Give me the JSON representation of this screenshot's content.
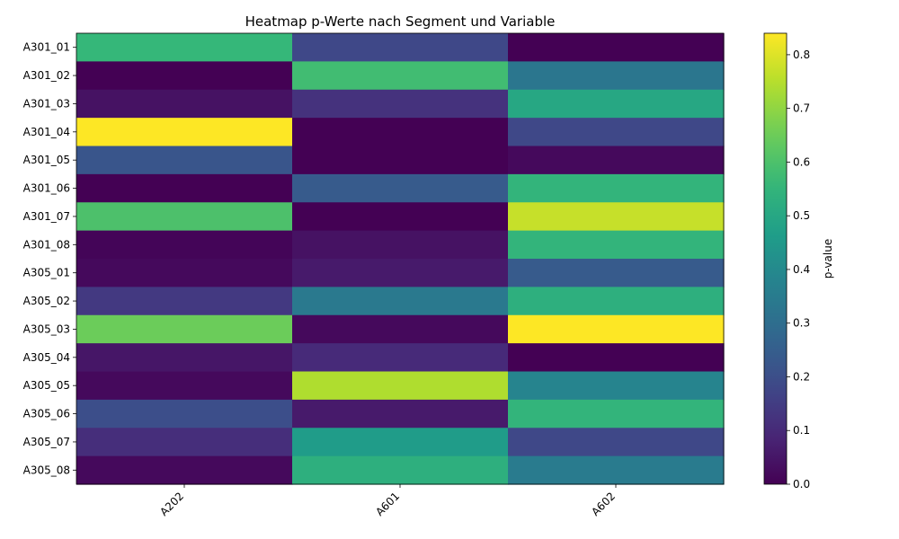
{
  "chart_data": {
    "type": "heatmap",
    "title": "Heatmap p-Werte nach Segment und Variable",
    "columns": [
      "A202",
      "A601",
      "A602"
    ],
    "rows": [
      "A301_01",
      "A301_02",
      "A301_03",
      "A301_04",
      "A301_05",
      "A301_06",
      "A301_07",
      "A301_08",
      "A305_01",
      "A305_02",
      "A305_03",
      "A305_04",
      "A305_05",
      "A305_06",
      "A305_07",
      "A305_08"
    ],
    "values": [
      [
        0.56,
        0.18,
        0.0
      ],
      [
        0.0,
        0.58,
        0.33
      ],
      [
        0.04,
        0.12,
        0.5
      ],
      [
        0.84,
        0.0,
        0.18
      ],
      [
        0.22,
        0.0,
        0.02
      ],
      [
        0.0,
        0.24,
        0.55
      ],
      [
        0.6,
        0.0,
        0.77
      ],
      [
        0.01,
        0.04,
        0.55
      ],
      [
        0.02,
        0.06,
        0.24
      ],
      [
        0.14,
        0.34,
        0.53
      ],
      [
        0.65,
        0.02,
        0.84
      ],
      [
        0.05,
        0.1,
        0.0
      ],
      [
        0.02,
        0.74,
        0.38
      ],
      [
        0.2,
        0.06,
        0.55
      ],
      [
        0.11,
        0.46,
        0.18
      ],
      [
        0.02,
        0.53,
        0.35
      ]
    ],
    "colorbar": {
      "label": "p-value",
      "min": 0.0,
      "max": 0.84,
      "ticks": [
        "0.0",
        "0.1",
        "0.2",
        "0.3",
        "0.4",
        "0.5",
        "0.6",
        "0.7",
        "0.8"
      ],
      "colormap": "viridis"
    }
  }
}
